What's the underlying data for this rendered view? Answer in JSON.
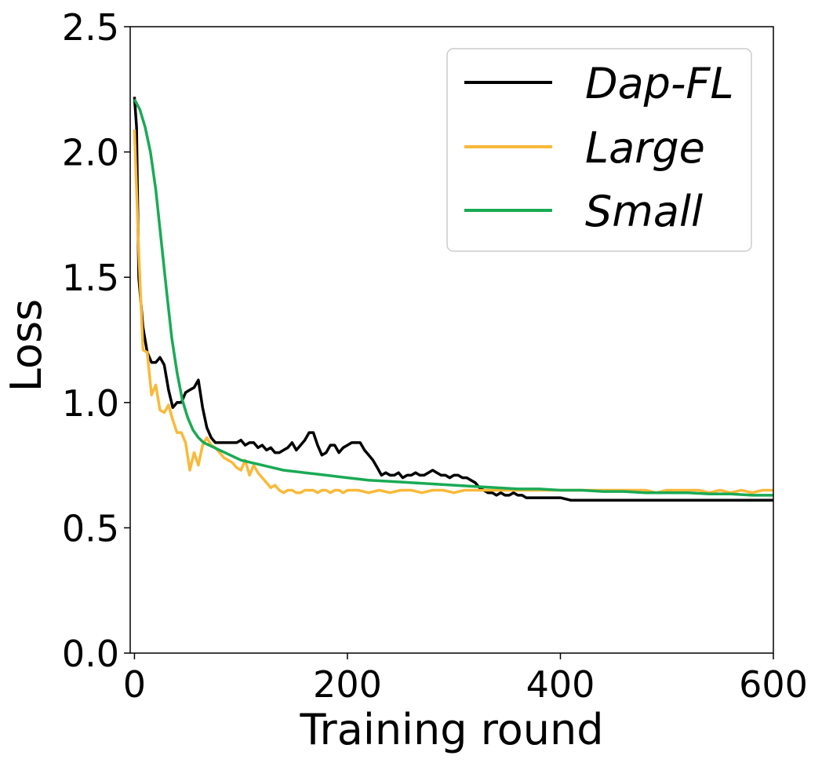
{
  "chart_data": {
    "type": "line",
    "title": "",
    "xlabel": "Training round",
    "ylabel": "Loss",
    "xlim": [
      -4,
      600
    ],
    "ylim": [
      0,
      2.5
    ],
    "xticks": [
      0,
      200,
      400,
      600
    ],
    "xtick_labels": [
      "0",
      "200",
      "400",
      "600"
    ],
    "yticks": [
      0,
      0.5,
      1.0,
      1.5,
      2.0,
      2.5
    ],
    "ytick_labels": [
      "0.0",
      "0.5",
      "1.0",
      "1.5",
      "2.0",
      "2.5"
    ],
    "grid": false,
    "legend_position": "top-right",
    "series": [
      {
        "name": "Dap-FL",
        "color": "#000000",
        "x": [
          0,
          2,
          4,
          8,
          12,
          16,
          20,
          24,
          28,
          32,
          36,
          40,
          44,
          48,
          52,
          56,
          60,
          64,
          68,
          72,
          76,
          80,
          88,
          96,
          100,
          104,
          108,
          112,
          116,
          120,
          124,
          128,
          132,
          136,
          140,
          144,
          148,
          152,
          156,
          160,
          164,
          168,
          172,
          176,
          180,
          184,
          188,
          192,
          196,
          200,
          204,
          208,
          212,
          216,
          220,
          224,
          228,
          232,
          236,
          240,
          244,
          248,
          252,
          256,
          260,
          264,
          268,
          272,
          276,
          280,
          284,
          288,
          292,
          296,
          300,
          304,
          308,
          312,
          316,
          320,
          324,
          328,
          332,
          336,
          340,
          344,
          348,
          352,
          356,
          360,
          364,
          368,
          372,
          376,
          380,
          384,
          388,
          392,
          396,
          400,
          410,
          420,
          430,
          440,
          450,
          460,
          470,
          480,
          490,
          500,
          520,
          540,
          560,
          580,
          600
        ],
        "y": [
          2.22,
          2.1,
          1.5,
          1.3,
          1.2,
          1.16,
          1.16,
          1.18,
          1.15,
          1.05,
          0.98,
          1.0,
          1.0,
          1.04,
          1.05,
          1.06,
          1.09,
          0.98,
          0.9,
          0.86,
          0.84,
          0.84,
          0.84,
          0.84,
          0.85,
          0.83,
          0.84,
          0.84,
          0.82,
          0.83,
          0.81,
          0.82,
          0.8,
          0.8,
          0.81,
          0.82,
          0.84,
          0.81,
          0.83,
          0.85,
          0.88,
          0.88,
          0.83,
          0.79,
          0.8,
          0.83,
          0.83,
          0.8,
          0.82,
          0.83,
          0.84,
          0.84,
          0.84,
          0.81,
          0.79,
          0.77,
          0.74,
          0.71,
          0.72,
          0.71,
          0.71,
          0.72,
          0.7,
          0.71,
          0.71,
          0.72,
          0.71,
          0.71,
          0.72,
          0.73,
          0.72,
          0.71,
          0.71,
          0.7,
          0.71,
          0.71,
          0.7,
          0.7,
          0.69,
          0.68,
          0.66,
          0.65,
          0.64,
          0.64,
          0.63,
          0.64,
          0.63,
          0.63,
          0.64,
          0.63,
          0.63,
          0.62,
          0.62,
          0.62,
          0.62,
          0.62,
          0.62,
          0.62,
          0.62,
          0.62,
          0.61,
          0.61,
          0.61,
          0.61,
          0.61,
          0.61,
          0.61,
          0.61,
          0.61,
          0.61,
          0.61,
          0.61,
          0.61,
          0.61,
          0.61
        ]
      },
      {
        "name": "Large",
        "color": "#f9b93a",
        "x": [
          0,
          4,
          8,
          12,
          16,
          20,
          24,
          28,
          32,
          36,
          40,
          44,
          48,
          52,
          56,
          60,
          64,
          68,
          72,
          76,
          80,
          84,
          88,
          92,
          96,
          100,
          104,
          108,
          112,
          116,
          120,
          124,
          128,
          132,
          136,
          140,
          144,
          148,
          152,
          156,
          160,
          164,
          168,
          172,
          176,
          180,
          184,
          188,
          192,
          196,
          200,
          210,
          220,
          230,
          240,
          250,
          260,
          270,
          280,
          290,
          300,
          310,
          320,
          330,
          340,
          350,
          360,
          370,
          380,
          390,
          400,
          410,
          420,
          430,
          440,
          450,
          460,
          470,
          480,
          490,
          500,
          510,
          520,
          530,
          540,
          550,
          560,
          570,
          580,
          590,
          600
        ],
        "y": [
          2.09,
          1.6,
          1.21,
          1.2,
          1.03,
          1.07,
          0.97,
          0.96,
          0.99,
          0.93,
          0.88,
          0.88,
          0.84,
          0.73,
          0.8,
          0.75,
          0.83,
          0.86,
          0.83,
          0.82,
          0.8,
          0.78,
          0.77,
          0.76,
          0.74,
          0.73,
          0.77,
          0.71,
          0.75,
          0.72,
          0.7,
          0.68,
          0.66,
          0.67,
          0.65,
          0.64,
          0.65,
          0.65,
          0.64,
          0.64,
          0.65,
          0.65,
          0.65,
          0.64,
          0.65,
          0.65,
          0.64,
          0.65,
          0.65,
          0.64,
          0.65,
          0.65,
          0.64,
          0.65,
          0.64,
          0.65,
          0.65,
          0.64,
          0.65,
          0.65,
          0.64,
          0.65,
          0.65,
          0.65,
          0.65,
          0.65,
          0.65,
          0.65,
          0.65,
          0.65,
          0.65,
          0.65,
          0.65,
          0.65,
          0.65,
          0.65,
          0.65,
          0.65,
          0.65,
          0.64,
          0.65,
          0.65,
          0.65,
          0.65,
          0.64,
          0.65,
          0.64,
          0.65,
          0.64,
          0.65,
          0.65
        ]
      },
      {
        "name": "Small",
        "color": "#1aaa55",
        "x": [
          0,
          5,
          10,
          15,
          20,
          25,
          30,
          35,
          40,
          45,
          50,
          55,
          60,
          65,
          70,
          80,
          90,
          100,
          110,
          120,
          130,
          140,
          150,
          160,
          170,
          180,
          190,
          200,
          220,
          240,
          260,
          280,
          300,
          320,
          340,
          360,
          380,
          400,
          420,
          440,
          460,
          480,
          500,
          520,
          540,
          560,
          580,
          600
        ],
        "y": [
          2.21,
          2.17,
          2.1,
          2.0,
          1.85,
          1.65,
          1.45,
          1.26,
          1.12,
          1.01,
          0.94,
          0.89,
          0.86,
          0.84,
          0.83,
          0.81,
          0.79,
          0.77,
          0.76,
          0.75,
          0.74,
          0.73,
          0.725,
          0.72,
          0.715,
          0.71,
          0.705,
          0.7,
          0.69,
          0.685,
          0.68,
          0.675,
          0.67,
          0.665,
          0.66,
          0.655,
          0.655,
          0.65,
          0.65,
          0.645,
          0.645,
          0.64,
          0.64,
          0.64,
          0.635,
          0.635,
          0.63,
          0.63
        ]
      }
    ]
  }
}
